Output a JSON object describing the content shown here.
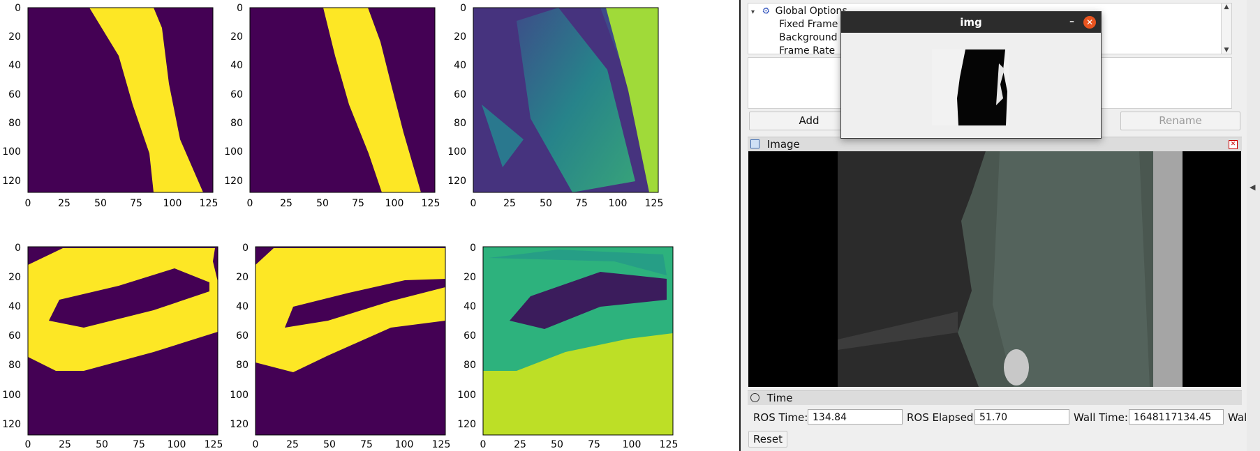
{
  "figure": {
    "x_ticks": [
      "0",
      "25",
      "50",
      "75",
      "100",
      "125"
    ],
    "y_ticks": [
      "0",
      "20",
      "40",
      "60",
      "80",
      "100",
      "120"
    ],
    "colors": {
      "purple": "#440154",
      "yellow": "#fde725",
      "teal": "#21918c",
      "green": "#35b779",
      "lime": "#bddf26"
    }
  },
  "rviz": {
    "displays_tree": {
      "global_options": "Global Options",
      "fixed_frame": "Fixed Frame",
      "background": "Background",
      "frame_rate": "Frame Rate"
    },
    "buttons": {
      "add": "Add",
      "rename": "Rename"
    },
    "image_panel": {
      "title": "Image"
    },
    "time_panel": {
      "title": "Time",
      "ros_time_label": "ROS Time:",
      "ros_time_value": "134.84",
      "ros_elapsed_label": "ROS Elapsed:",
      "ros_elapsed_value": "51.70",
      "wall_time_label": "Wall Time:",
      "wall_time_value": "1648117134.45",
      "wall_elapsed_label": "Wall E",
      "reset": "Reset"
    }
  },
  "img_window": {
    "title": "img",
    "minimize": "–",
    "close": "✕"
  }
}
